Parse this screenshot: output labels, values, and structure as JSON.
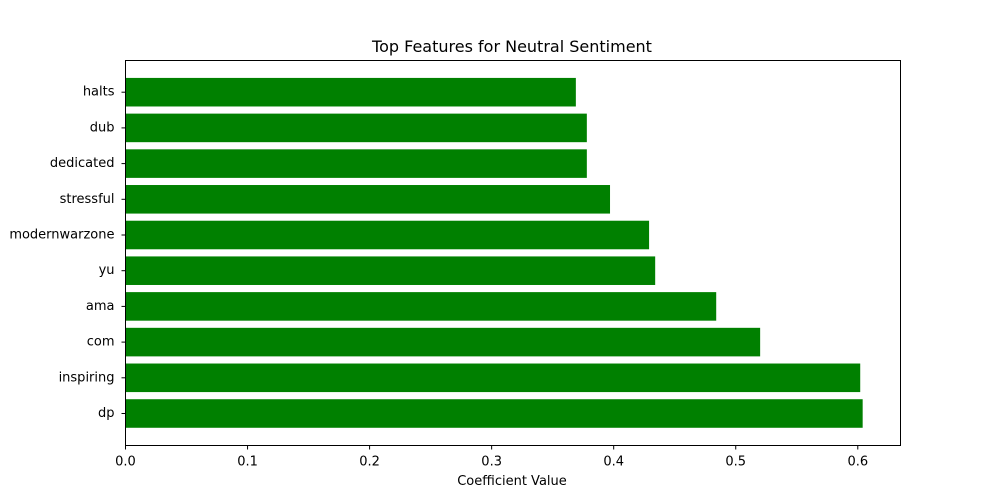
{
  "chart_data": {
    "type": "bar",
    "orientation": "horizontal",
    "title": "Top Features for Neutral Sentiment",
    "xlabel": "Coefficient Value",
    "ylabel": "",
    "categories": [
      "dp",
      "inspiring",
      "com",
      "ama",
      "yu",
      "modernwarzone",
      "stressful",
      "dedicated",
      "dub",
      "halts"
    ],
    "values": [
      0.604,
      0.602,
      0.52,
      0.484,
      0.434,
      0.429,
      0.397,
      0.378,
      0.378,
      0.369
    ],
    "xlim": [
      0,
      0.635
    ],
    "xticks": [
      "0.0",
      "0.1",
      "0.2",
      "0.3",
      "0.4",
      "0.5",
      "0.6"
    ],
    "bar_color": "#008000",
    "grid": false,
    "legend": "none"
  }
}
